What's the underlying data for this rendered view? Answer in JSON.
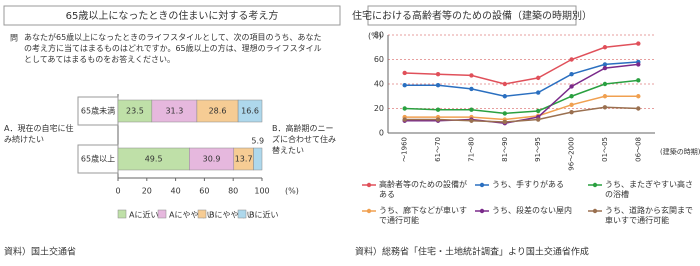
{
  "chart_data": [
    {
      "type": "bar",
      "orientation": "horizontal",
      "stacked": true,
      "title": "65歳以上になったときの住まいに対する考え方",
      "question_mark": "問",
      "question": "あなたが65歳以上になったときのライフスタイルとして、次の項目のうち、あなたの考え方に当てはまるものはどれですか。65歳以上の方は、理想のライフスタイルとしてあてはまるものをお答えください。",
      "left_note": "A．現在の自宅に住み続けたい",
      "right_note": "B．高齢期のニーズに合わせて住み替えたい",
      "categories": [
        "65歳未満",
        "65歳以上"
      ],
      "series": [
        {
          "name": "Aに近い",
          "color": "#bfe0a8",
          "values": [
            23.5,
            49.5
          ]
        },
        {
          "name": "Aにやや近い",
          "color": "#e6b8de",
          "values": [
            31.3,
            30.9
          ]
        },
        {
          "name": "Bにやや近い",
          "color": "#f6cc94",
          "values": [
            28.6,
            13.7
          ]
        },
        {
          "name": "Bに近い",
          "color": "#aed8ec",
          "values": [
            16.6,
            5.9
          ]
        }
      ],
      "xlim": [
        0,
        100
      ],
      "xticks": [
        0,
        20,
        40,
        60,
        80,
        100
      ],
      "x_label": "(%)",
      "source": "資料）国土交通省"
    },
    {
      "type": "line",
      "title": "住宅における高齢者等のための設備（建築の時期別）",
      "categories": [
        "～1960",
        "61～70",
        "71～80",
        "81～90",
        "91～95",
        "96～2000",
        "01～05",
        "06～08"
      ],
      "series": [
        {
          "name": "高齢者等のための設備がある",
          "color": "#e0505a",
          "values": [
            49,
            48,
            47,
            40,
            45,
            60,
            70,
            73
          ]
        },
        {
          "name": "うち、手すりがある",
          "color": "#2a6fc0",
          "values": [
            39,
            39,
            36,
            30,
            33,
            48,
            56,
            58
          ]
        },
        {
          "name": "うち、またぎやすい高さの浴槽",
          "color": "#2aa040",
          "values": [
            20,
            19,
            19,
            16,
            18,
            30,
            40,
            43
          ]
        },
        {
          "name": "うち、廊下などが車いすで通行可能",
          "color": "#f0a050",
          "values": [
            13,
            13,
            13,
            11,
            14,
            23,
            30,
            30
          ]
        },
        {
          "name": "うち、段差のない屋内",
          "color": "#7a2a8a",
          "values": [
            10,
            10,
            11,
            8,
            13,
            38,
            53,
            56
          ]
        },
        {
          "name": "うち、道路から玄関まで車いすで通行可能",
          "color": "#9a7050",
          "values": [
            11,
            11,
            10,
            9,
            11,
            17,
            21,
            20
          ]
        }
      ],
      "ylim": [
        0,
        80
      ],
      "yticks": [
        0,
        20,
        40,
        60,
        80
      ],
      "y_label": "(%)",
      "x_label": "(建築の時期)",
      "grid": true,
      "source": "資料）総務省「住宅・土地統計調査」より国土交通省作成"
    }
  ]
}
